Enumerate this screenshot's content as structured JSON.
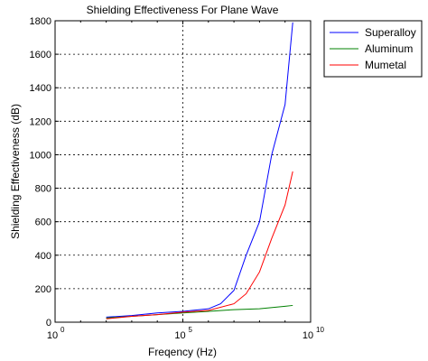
{
  "chart_data": {
    "type": "line",
    "title": "Shielding Effectiveness For Plane Wave",
    "xlabel": "Freqency (Hz)",
    "ylabel": "Shielding Effectiveness (dB)",
    "xscale": "log",
    "xlim": [
      1,
      10000000000
    ],
    "ylim": [
      0,
      1800
    ],
    "grid": true,
    "legend_position": "top-right (outside plot)",
    "x_ticks": [
      {
        "value": 1,
        "base": "10",
        "exp": "0"
      },
      {
        "value": 100000,
        "base": "10",
        "exp": "5"
      },
      {
        "value": 10000000000,
        "base": "10",
        "exp": "10"
      }
    ],
    "y_ticks": [
      0,
      200,
      400,
      600,
      800,
      1000,
      1200,
      1400,
      1600,
      1800
    ],
    "series": [
      {
        "name": "Superalloy",
        "color": "#0000ff",
        "x": [
          100,
          1000,
          10000,
          100000,
          1000000,
          3000000,
          10000000,
          30000000,
          100000000,
          300000000,
          1000000000,
          2000000000
        ],
        "y": [
          30,
          40,
          55,
          65,
          80,
          110,
          190,
          400,
          600,
          1000,
          1300,
          1790
        ]
      },
      {
        "name": "Aluminum",
        "color": "#008000",
        "x": [
          100,
          1000,
          10000,
          100000,
          1000000,
          10000000,
          100000000,
          1000000000,
          2000000000
        ],
        "y": [
          25,
          35,
          45,
          55,
          65,
          75,
          80,
          95,
          100
        ]
      },
      {
        "name": "Mumetal",
        "color": "#ff0000",
        "x": [
          100,
          1000,
          10000,
          100000,
          1000000,
          10000000,
          30000000,
          100000000,
          300000000,
          1000000000,
          2000000000
        ],
        "y": [
          20,
          35,
          45,
          60,
          70,
          110,
          170,
          300,
          500,
          700,
          900
        ]
      }
    ]
  }
}
